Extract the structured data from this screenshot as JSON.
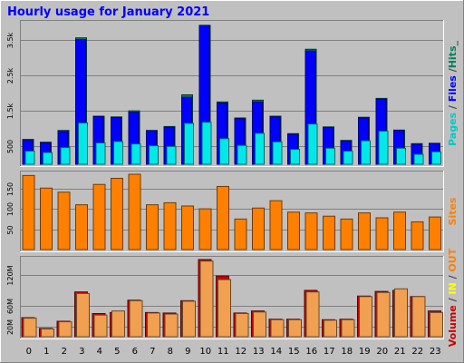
{
  "chart_data": {
    "type": "bar",
    "title": "Hourly usage for January 2021",
    "categories": [
      "0",
      "1",
      "2",
      "3",
      "4",
      "5",
      "6",
      "7",
      "8",
      "9",
      "10",
      "11",
      "12",
      "13",
      "14",
      "15",
      "16",
      "17",
      "18",
      "19",
      "20",
      "21",
      "22",
      "23"
    ],
    "panels": [
      {
        "id": "top",
        "ylabel_parts": [
          {
            "text": "Pages",
            "color": "#00c8c8"
          },
          {
            "text": " / ",
            "color": "#404040"
          },
          {
            "text": "Files",
            "color": "#0000ff"
          },
          {
            "text": " /",
            "color": "#404040"
          },
          {
            "text": "Hits",
            "color": "#00805c"
          },
          {
            "text": "_",
            "color": "#404040"
          }
        ],
        "yticks": [
          "500",
          "1.5k",
          "2.5k",
          "3.5k"
        ],
        "ytick_values": [
          500,
          1500,
          2500,
          3500
        ],
        "ylim": [
          0,
          3950
        ],
        "series": [
          {
            "name": "Hits",
            "color": "#00805c",
            "values": [
              700,
              620,
              950,
              3550,
              1350,
              1330,
              1500,
              950,
              1060,
              1950,
              3900,
              1750,
              1300,
              1800,
              1350,
              860,
              3230,
              1050,
              670,
              1320,
              1850,
              960,
              580,
              590
            ]
          },
          {
            "name": "Files",
            "color": "#0000ff",
            "values": [
              670,
              600,
              920,
              3500,
              1340,
              1310,
              1460,
              940,
              1040,
              1880,
              3900,
              1720,
              1280,
              1750,
              1330,
              840,
              3180,
              1030,
              650,
              1300,
              1830,
              950,
              560,
              580
            ]
          },
          {
            "name": "Pages",
            "color": "#00e8e8",
            "values": [
              370,
              330,
              470,
              1160,
              600,
              640,
              570,
              520,
              500,
              1150,
              1180,
              720,
              530,
              870,
              630,
              420,
              1130,
              450,
              370,
              660,
              930,
              450,
              280,
              350
            ]
          }
        ]
      },
      {
        "id": "middle",
        "ylabel_parts": [
          {
            "text": "Sites",
            "color": "#ff8000"
          }
        ],
        "yticks": [
          "50",
          "100",
          "150"
        ],
        "ytick_values": [
          50,
          100,
          150
        ],
        "ylim": [
          0,
          185
        ],
        "series": [
          {
            "name": "Sites",
            "color": "#ff8000",
            "values": [
              182,
              151,
              141,
              110,
              160,
              175,
              185,
              110,
              115,
              107,
              100,
              155,
              75,
              102,
              120,
              92,
              90,
              82,
              75,
              90,
              78,
              92,
              68,
              80
            ]
          }
        ]
      },
      {
        "id": "bottom",
        "ylabel_parts": [
          {
            "text": "Volume",
            "color": "#cc0000"
          },
          {
            "text": " / ",
            "color": "#404040"
          },
          {
            "text": "IN",
            "color": "#ffff00"
          },
          {
            "text": " / ",
            "color": "#404040"
          },
          {
            "text": "OUT",
            "color": "#ff8000"
          }
        ],
        "yticks": [
          "20M",
          "60M",
          "120M"
        ],
        "ytick_values": [
          20,
          60,
          120
        ],
        "ylim": [
          0,
          150
        ],
        "series": [
          {
            "name": "Volume",
            "color": "#cc0000",
            "values": [
              37,
              16,
              30,
              87,
              45,
              47,
              71,
              47,
              46,
              70,
              150,
              118,
              46,
              50,
              34,
              34,
              90,
              33,
              34,
              79,
              88,
              90,
              78,
              50
            ]
          },
          {
            "name": "OUT",
            "color": "#f0a050",
            "values": [
              36,
              15,
              29,
              84,
              42,
              50,
              70,
              46,
              44,
              69,
              147,
              111,
              45,
              48,
              33,
              33,
              87,
              32,
              33,
              78,
              86,
              93,
              78,
              47
            ]
          }
        ]
      }
    ],
    "colors": {
      "background": "#c0c0c0",
      "plot_background": "#c0c0c0",
      "title": "#0000ff",
      "grid": "#808080",
      "axis_text": "#000000"
    },
    "grid": true
  }
}
